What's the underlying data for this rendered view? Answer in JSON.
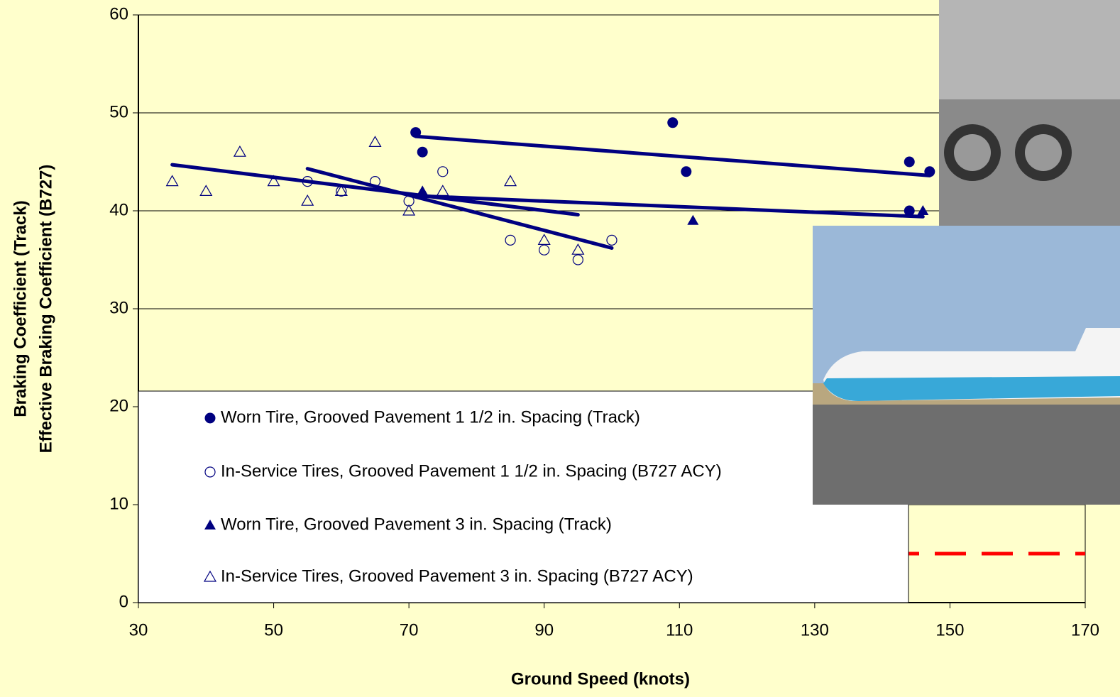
{
  "chart_data": {
    "type": "scatter",
    "xlabel": "Ground Speed (knots)",
    "ylabel": [
      "Braking Coefficient (Track)",
      "Effective Braking Coefficient (B727)"
    ],
    "xlim": [
      30,
      170
    ],
    "xticks": [
      30,
      50,
      70,
      90,
      110,
      130,
      150,
      170
    ],
    "ylim": [
      0,
      60
    ],
    "yticks": [
      0,
      10,
      20,
      30,
      40,
      50,
      60
    ],
    "grid": true,
    "series": [
      {
        "name": "Worn Tire, Grooved Pavement 1 1/2 in. Spacing (Track)",
        "color": "#000080",
        "marker": "filled-circle",
        "x": [
          71,
          72,
          109,
          111,
          144,
          144,
          147
        ],
        "values": [
          48,
          46,
          49,
          44,
          45,
          40,
          44
        ],
        "trend": {
          "x": [
            71,
            147
          ],
          "values": [
            47.6,
            43.6
          ]
        }
      },
      {
        "name": "In-Service Tires, Grooved Pavement 1 1/2 in. Spacing (B727 ACY)",
        "color": "#000080",
        "marker": "open-circle",
        "x": [
          55,
          60,
          65,
          70,
          75,
          85,
          90,
          95,
          100
        ],
        "values": [
          43,
          42,
          43,
          41,
          44,
          37,
          36,
          35,
          37
        ],
        "trend": {
          "x": [
            55,
            100
          ],
          "values": [
            44.3,
            36.2
          ]
        }
      },
      {
        "name": "Worn Tire, Grooved Pavement 3 in. Spacing (Track)",
        "color": "#000080",
        "marker": "filled-triangle",
        "x": [
          72,
          112,
          146
        ],
        "values": [
          42,
          39,
          40
        ],
        "trend": {
          "x": [
            72,
            146
          ],
          "values": [
            41.5,
            39.4
          ]
        }
      },
      {
        "name": "In-Service Tires, Grooved Pavement 3 in. Spacing (B727 ACY)",
        "color": "#000080",
        "marker": "open-triangle",
        "x": [
          35,
          40,
          45,
          50,
          55,
          60,
          65,
          70,
          75,
          85,
          90,
          95
        ],
        "values": [
          43,
          42,
          46,
          43,
          41,
          42,
          47,
          40,
          42,
          43,
          37,
          36
        ],
        "trend": {
          "x": [
            35,
            95
          ],
          "values": [
            44.7,
            39.6
          ]
        }
      }
    ],
    "threshold": {
      "value": 5,
      "color": "#ff0000"
    }
  }
}
